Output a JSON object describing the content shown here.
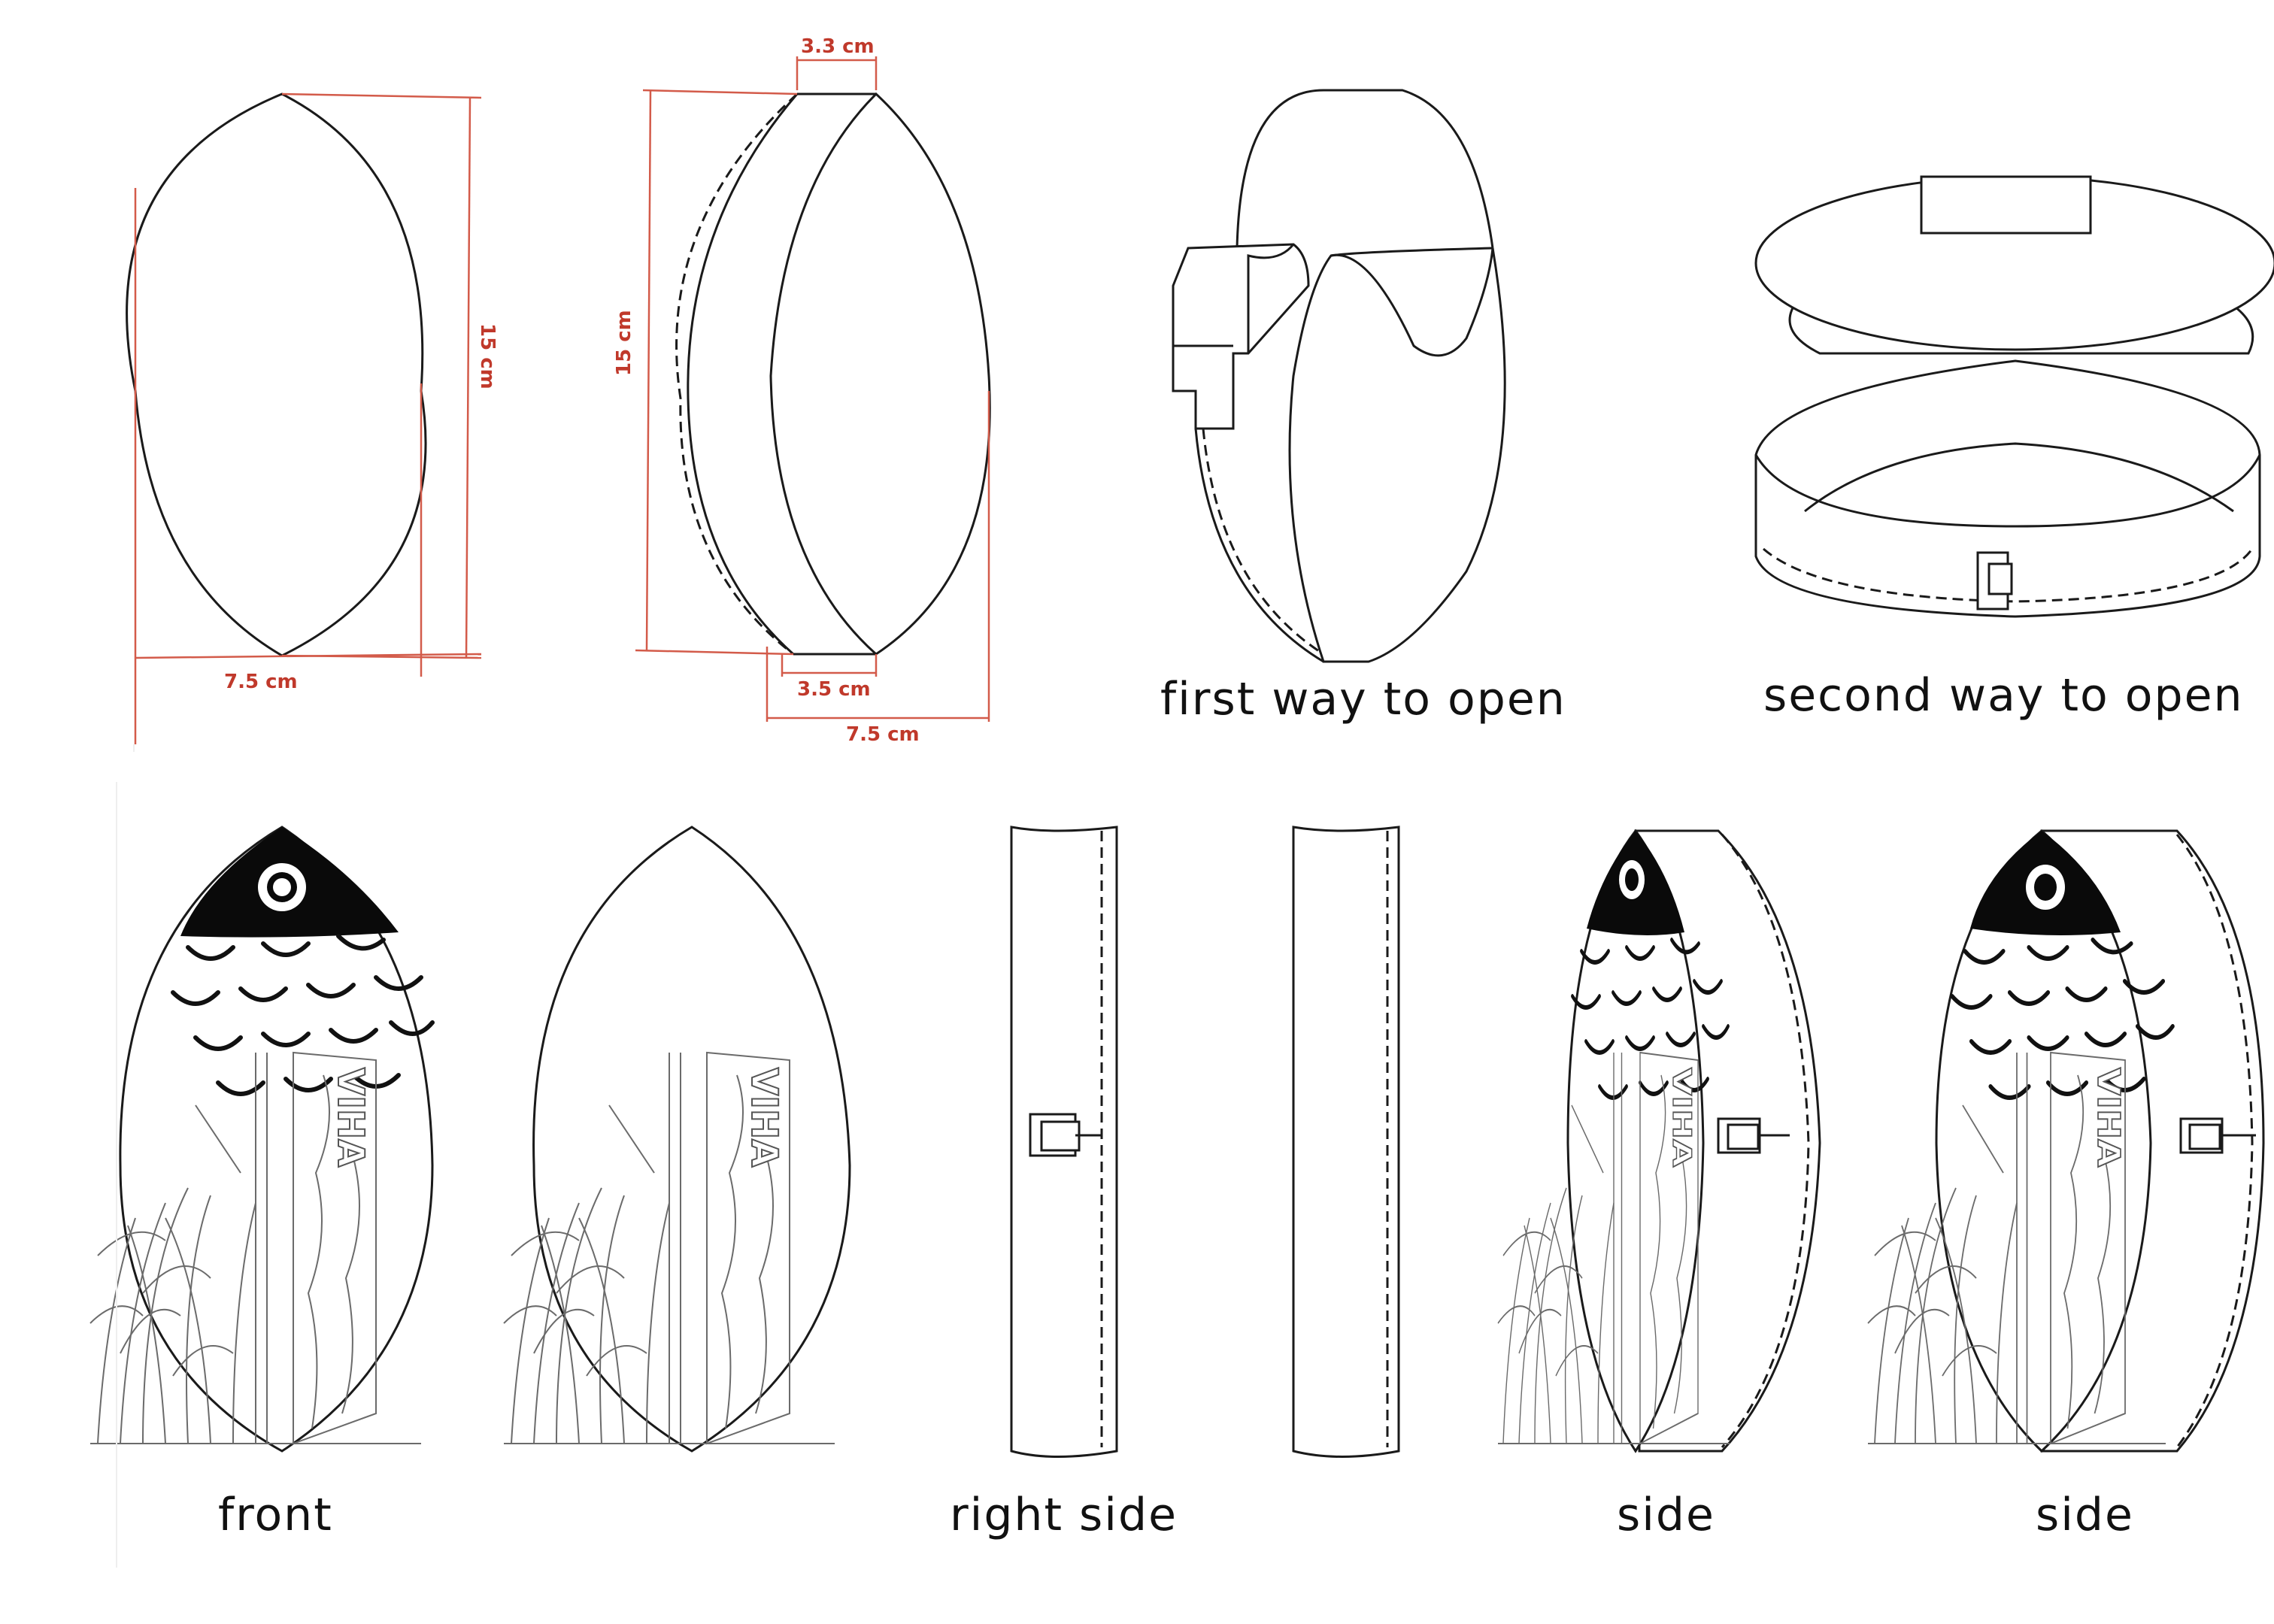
{
  "dimensions": {
    "height_front": "15 cm",
    "width_front": "7.5 cm",
    "depth_top": "3.3 cm",
    "height_side": "15 cm",
    "depth_bottom": "3.5 cm",
    "width_side": "7.5 cm"
  },
  "captions": {
    "first_open": "first way to open",
    "second_open": "second way to open",
    "front": "front",
    "right_side": "right side",
    "side_a": "side",
    "side_b": "side"
  },
  "brand_text": "VIHA",
  "colors": {
    "dimension_lines": "#d35b4a",
    "dimension_text": "#c0392b",
    "outline": "#1a1a1a",
    "fish_head": "#0a0a0a"
  }
}
